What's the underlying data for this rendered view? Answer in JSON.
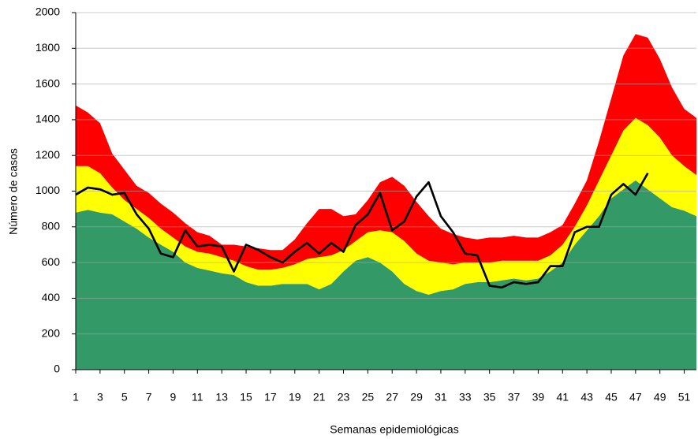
{
  "chart_data": {
    "type": "area",
    "stacked": true,
    "y_label": "Número de casos",
    "x_label": "Semanas epidemiológicas",
    "x": [
      1,
      2,
      3,
      4,
      5,
      6,
      7,
      8,
      9,
      10,
      11,
      12,
      13,
      14,
      15,
      16,
      17,
      18,
      19,
      20,
      21,
      22,
      23,
      24,
      25,
      26,
      27,
      28,
      29,
      30,
      31,
      32,
      33,
      34,
      35,
      36,
      37,
      38,
      39,
      40,
      41,
      42,
      43,
      44,
      45,
      46,
      47,
      48,
      49,
      50,
      51,
      52
    ],
    "xlim": [
      1,
      52
    ],
    "xticks": [
      1,
      3,
      5,
      7,
      9,
      11,
      13,
      15,
      17,
      19,
      21,
      23,
      25,
      27,
      29,
      31,
      33,
      35,
      37,
      39,
      41,
      43,
      45,
      47,
      49,
      51
    ],
    "ylim": [
      0,
      2000
    ],
    "yticks": [
      0,
      200,
      400,
      600,
      800,
      1000,
      1200,
      1400,
      1600,
      1800,
      2000
    ],
    "grid": true,
    "series": [
      {
        "color": "#339966",
        "values": [
          880,
          895,
          880,
          870,
          830,
          790,
          740,
          700,
          660,
          600,
          570,
          555,
          540,
          530,
          490,
          470,
          470,
          480,
          480,
          480,
          450,
          480,
          550,
          610,
          630,
          600,
          550,
          480,
          440,
          420,
          440,
          450,
          480,
          490,
          490,
          500,
          510,
          500,
          510,
          550,
          600,
          700,
          780,
          860,
          960,
          1010,
          1060,
          1010,
          960,
          910,
          890,
          860
        ]
      },
      {
        "color": "#ffff00",
        "values": [
          260,
          245,
          220,
          150,
          120,
          110,
          110,
          90,
          80,
          90,
          90,
          95,
          90,
          80,
          90,
          90,
          90,
          90,
          110,
          140,
          180,
          160,
          120,
          110,
          140,
          180,
          220,
          240,
          210,
          190,
          160,
          140,
          120,
          110,
          110,
          110,
          100,
          110,
          100,
          90,
          100,
          100,
          140,
          200,
          240,
          330,
          350,
          360,
          340,
          290,
          250,
          230
        ]
      },
      {
        "color": "#ff0000",
        "values": [
          340,
          300,
          280,
          190,
          170,
          130,
          140,
          140,
          140,
          130,
          110,
          100,
          70,
          90,
          110,
          120,
          110,
          100,
          140,
          200,
          270,
          260,
          190,
          150,
          180,
          270,
          310,
          310,
          290,
          250,
          190,
          170,
          140,
          130,
          140,
          130,
          140,
          130,
          130,
          130,
          110,
          130,
          140,
          220,
          320,
          420,
          470,
          490,
          440,
          380,
          320,
          320
        ]
      },
      {
        "type": "line",
        "color": "#000000",
        "values": [
          980,
          1020,
          1010,
          980,
          990,
          870,
          790,
          650,
          630,
          780,
          690,
          700,
          690,
          550,
          700,
          670,
          630,
          600,
          660,
          710,
          650,
          710,
          660,
          810,
          870,
          990,
          780,
          830,
          970,
          1050,
          860,
          770,
          650,
          640,
          470,
          460,
          490,
          480,
          490,
          580,
          580,
          770,
          800,
          800,
          980,
          1040,
          980,
          1100,
          null,
          null,
          null,
          null
        ]
      }
    ]
  }
}
